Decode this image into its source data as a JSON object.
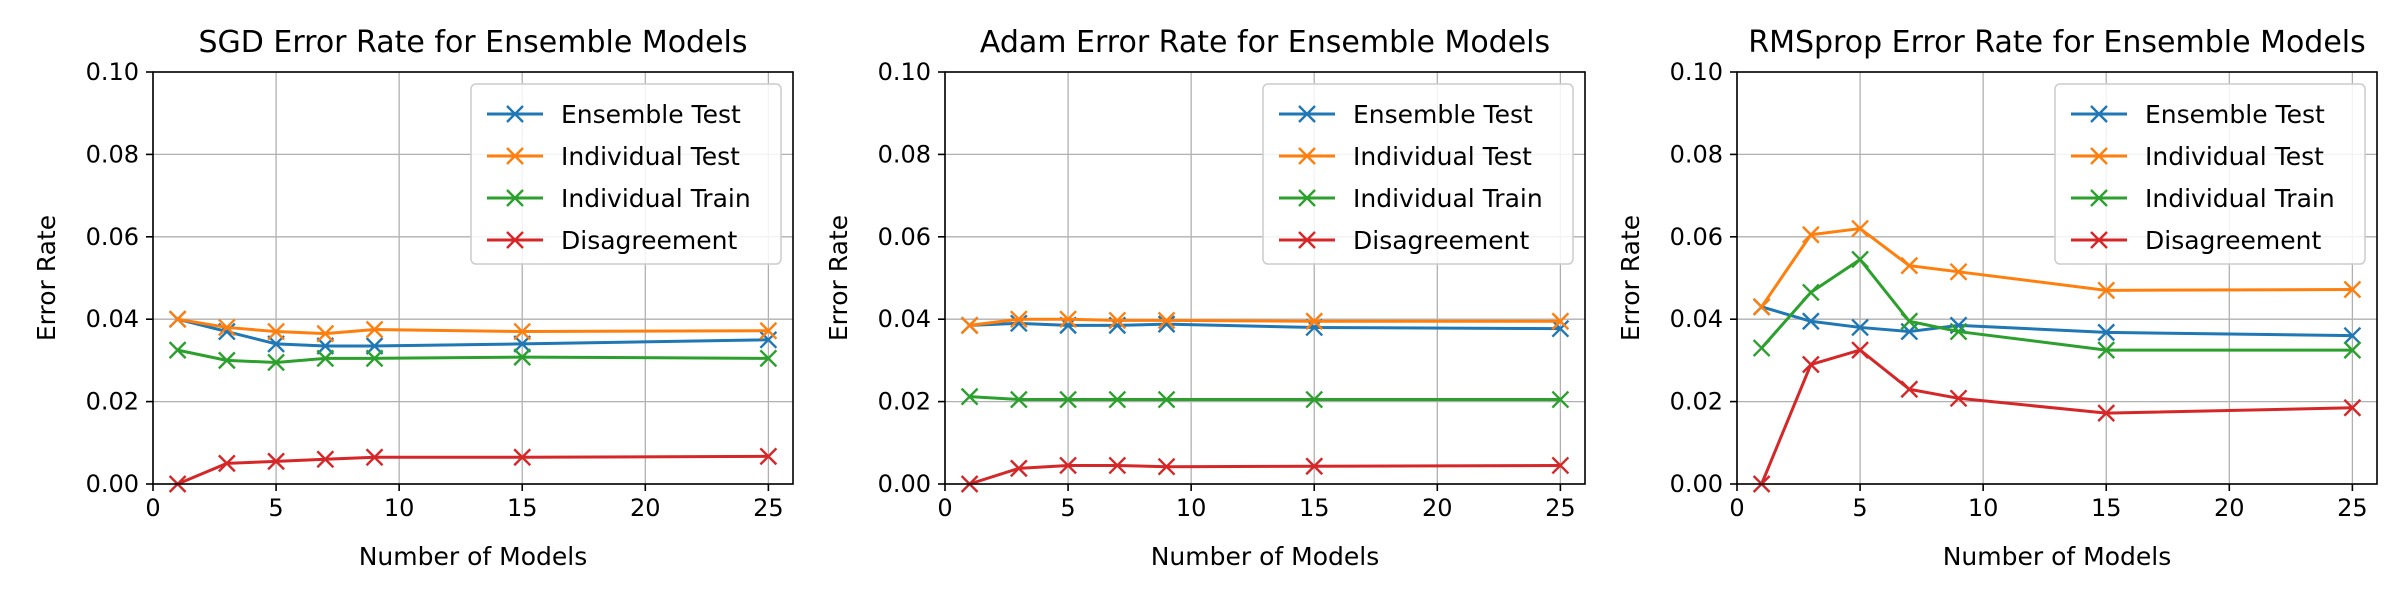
{
  "chart_data": [
    {
      "type": "line",
      "title": "SGD Error Rate for Ensemble Models",
      "xlabel": "Number of Models",
      "ylabel": "Error Rate",
      "xlim": [
        0,
        26
      ],
      "ylim": [
        0,
        0.1
      ],
      "xticks": [
        0,
        5,
        10,
        15,
        20,
        25
      ],
      "xtick_labels": [
        "0",
        "5",
        "10",
        "15",
        "20",
        "25"
      ],
      "yticks": [
        0,
        0.02,
        0.04,
        0.06,
        0.08,
        0.1
      ],
      "ytick_labels": [
        "0.00",
        "0.02",
        "0.04",
        "0.06",
        "0.08",
        "0.10"
      ],
      "grid": true,
      "legend_position": "top-right",
      "marker": "x",
      "x": [
        1,
        3,
        5,
        7,
        9,
        15,
        25
      ],
      "series": [
        {
          "name": "Ensemble Test",
          "color": "#1f77b4",
          "values": [
            0.04,
            0.037,
            0.034,
            0.0335,
            0.0335,
            0.034,
            0.035
          ]
        },
        {
          "name": "Individual Test",
          "color": "#ff7f0e",
          "values": [
            0.04,
            0.038,
            0.037,
            0.0365,
            0.0375,
            0.037,
            0.0372
          ]
        },
        {
          "name": "Individual Train",
          "color": "#2ca02c",
          "values": [
            0.0325,
            0.03,
            0.0295,
            0.0305,
            0.0305,
            0.0308,
            0.0305
          ]
        },
        {
          "name": "Disagreement",
          "color": "#d62728",
          "values": [
            0.0,
            0.005,
            0.0055,
            0.006,
            0.0065,
            0.0065,
            0.0067
          ]
        }
      ]
    },
    {
      "type": "line",
      "title": "Adam Error Rate for Ensemble Models",
      "xlabel": "Number of Models",
      "ylabel": "Error Rate",
      "xlim": [
        0,
        26
      ],
      "ylim": [
        0,
        0.1
      ],
      "xticks": [
        0,
        5,
        10,
        15,
        20,
        25
      ],
      "xtick_labels": [
        "0",
        "5",
        "10",
        "15",
        "20",
        "25"
      ],
      "yticks": [
        0,
        0.02,
        0.04,
        0.06,
        0.08,
        0.1
      ],
      "ytick_labels": [
        "0.00",
        "0.02",
        "0.04",
        "0.06",
        "0.08",
        "0.10"
      ],
      "grid": true,
      "legend_position": "top-right",
      "marker": "x",
      "x": [
        1,
        3,
        5,
        7,
        9,
        15,
        25
      ],
      "series": [
        {
          "name": "Ensemble Test",
          "color": "#1f77b4",
          "values": [
            0.0385,
            0.039,
            0.0385,
            0.0385,
            0.0388,
            0.038,
            0.0377
          ]
        },
        {
          "name": "Individual Test",
          "color": "#ff7f0e",
          "values": [
            0.0385,
            0.04,
            0.04,
            0.0397,
            0.0397,
            0.0395,
            0.0395
          ]
        },
        {
          "name": "Individual Train",
          "color": "#2ca02c",
          "values": [
            0.0212,
            0.0205,
            0.0205,
            0.0205,
            0.0205,
            0.0205,
            0.0205
          ]
        },
        {
          "name": "Disagreement",
          "color": "#d62728",
          "values": [
            0.0,
            0.0038,
            0.0045,
            0.0045,
            0.0042,
            0.0043,
            0.0045
          ]
        }
      ]
    },
    {
      "type": "line",
      "title": "RMSprop Error Rate for Ensemble Models",
      "xlabel": "Number of Models",
      "ylabel": "Error Rate",
      "xlim": [
        0,
        26
      ],
      "ylim": [
        0,
        0.1
      ],
      "xticks": [
        0,
        5,
        10,
        15,
        20,
        25
      ],
      "xtick_labels": [
        "0",
        "5",
        "10",
        "15",
        "20",
        "25"
      ],
      "yticks": [
        0,
        0.02,
        0.04,
        0.06,
        0.08,
        0.1
      ],
      "ytick_labels": [
        "0.00",
        "0.02",
        "0.04",
        "0.06",
        "0.08",
        "0.10"
      ],
      "grid": true,
      "legend_position": "top-right",
      "marker": "x",
      "x": [
        1,
        3,
        5,
        7,
        9,
        15,
        25
      ],
      "series": [
        {
          "name": "Ensemble Test",
          "color": "#1f77b4",
          "values": [
            0.043,
            0.0395,
            0.038,
            0.037,
            0.0385,
            0.0368,
            0.036
          ]
        },
        {
          "name": "Individual Test",
          "color": "#ff7f0e",
          "values": [
            0.043,
            0.0605,
            0.062,
            0.053,
            0.0515,
            0.047,
            0.0472
          ]
        },
        {
          "name": "Individual Train",
          "color": "#2ca02c",
          "values": [
            0.033,
            0.0465,
            0.0545,
            0.0395,
            0.037,
            0.0325,
            0.0325
          ]
        },
        {
          "name": "Disagreement",
          "color": "#d62728",
          "values": [
            0.0,
            0.029,
            0.0325,
            0.023,
            0.0208,
            0.0172,
            0.0185
          ]
        }
      ]
    }
  ]
}
